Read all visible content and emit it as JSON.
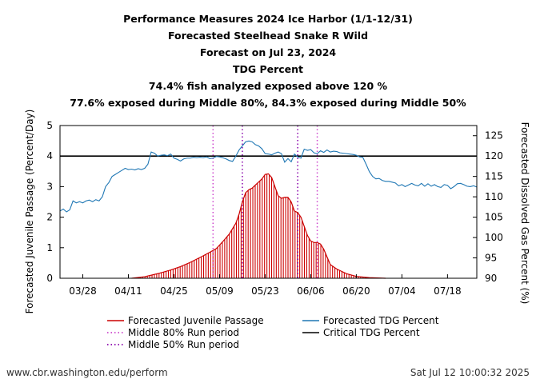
{
  "chart_data": {
    "type": "line",
    "title_lines": [
      "Performance Measures 2024 Ice Harbor (1/1-12/31)",
      "Forecasted Steelhead Snake R Wild",
      "Forecast on Jul 23, 2024",
      "TDG Percent",
      "74.4% fish analyzed exposed above 120 %",
      "77.6% exposed during Middle 80%, 84.3% exposed during Middle 50%"
    ],
    "ylabel_left": "Forecasted Juvenile Passage (Percent/Day)",
    "ylabel_right": "Forecasted Dissolved Gas Percent (%)",
    "x_range_days": [
      0,
      128
    ],
    "x_ticks": [
      {
        "label": "03/28",
        "day": 7
      },
      {
        "label": "04/11",
        "day": 21
      },
      {
        "label": "04/25",
        "day": 35
      },
      {
        "label": "05/09",
        "day": 49
      },
      {
        "label": "05/23",
        "day": 63
      },
      {
        "label": "06/06",
        "day": 77
      },
      {
        "label": "06/20",
        "day": 91
      },
      {
        "label": "07/04",
        "day": 105
      },
      {
        "label": "07/18",
        "day": 119
      }
    ],
    "ylim_left": [
      0,
      5
    ],
    "y_ticks_left": [
      "0",
      "1",
      "2",
      "3",
      "4",
      "5"
    ],
    "ylim_right": [
      90,
      127.5
    ],
    "y_ticks_right": [
      "90",
      "95",
      "100",
      "105",
      "110",
      "115",
      "120",
      "125"
    ],
    "critical_tdg_percent": 120,
    "middle80_days": [
      47,
      79
    ],
    "middle50_days": [
      56,
      73
    ],
    "passage_series": {
      "name": "Forecasted Juvenile Passage",
      "color": "#cc0000",
      "points": [
        [
          22,
          0
        ],
        [
          26,
          0.05
        ],
        [
          30,
          0.15
        ],
        [
          34,
          0.27
        ],
        [
          37,
          0.38
        ],
        [
          40,
          0.52
        ],
        [
          43,
          0.68
        ],
        [
          46,
          0.85
        ],
        [
          48,
          0.97
        ],
        [
          50,
          1.2
        ],
        [
          52,
          1.45
        ],
        [
          54,
          1.8
        ],
        [
          55,
          2.1
        ],
        [
          56,
          2.5
        ],
        [
          57,
          2.8
        ],
        [
          58,
          2.9
        ],
        [
          59,
          2.95
        ],
        [
          60,
          3.05
        ],
        [
          61,
          3.15
        ],
        [
          62,
          3.25
        ],
        [
          63,
          3.4
        ],
        [
          64,
          3.42
        ],
        [
          65,
          3.3
        ],
        [
          66,
          3.0
        ],
        [
          67,
          2.7
        ],
        [
          68,
          2.62
        ],
        [
          69,
          2.65
        ],
        [
          70,
          2.65
        ],
        [
          71,
          2.5
        ],
        [
          72,
          2.2
        ],
        [
          73,
          2.15
        ],
        [
          74,
          2.0
        ],
        [
          75,
          1.7
        ],
        [
          76,
          1.4
        ],
        [
          77,
          1.22
        ],
        [
          78,
          1.17
        ],
        [
          79,
          1.17
        ],
        [
          80,
          1.12
        ],
        [
          81,
          0.95
        ],
        [
          82,
          0.7
        ],
        [
          83,
          0.45
        ],
        [
          85,
          0.3
        ],
        [
          88,
          0.15
        ],
        [
          91,
          0.06
        ],
        [
          95,
          0.02
        ],
        [
          100,
          0
        ]
      ]
    },
    "tdg_series": {
      "name": "Forecasted TDG Percent",
      "color": "#1f77b4",
      "points": [
        [
          0,
          106.5
        ],
        [
          1,
          107
        ],
        [
          2,
          106.3
        ],
        [
          3,
          106.8
        ],
        [
          4,
          109
        ],
        [
          5,
          108.5
        ],
        [
          6,
          108.8
        ],
        [
          7,
          108.5
        ],
        [
          8,
          109
        ],
        [
          9,
          109.2
        ],
        [
          10,
          108.8
        ],
        [
          11,
          109.3
        ],
        [
          12,
          109
        ],
        [
          13,
          110
        ],
        [
          14,
          112.5
        ],
        [
          15,
          113.5
        ],
        [
          16,
          115
        ],
        [
          17,
          115.5
        ],
        [
          18,
          116
        ],
        [
          19,
          116.5
        ],
        [
          20,
          117
        ],
        [
          21,
          116.7
        ],
        [
          22,
          116.8
        ],
        [
          23,
          116.6
        ],
        [
          24,
          116.9
        ],
        [
          25,
          116.7
        ],
        [
          26,
          117
        ],
        [
          27,
          118
        ],
        [
          28,
          121
        ],
        [
          29,
          120.7
        ],
        [
          30,
          120
        ],
        [
          31,
          120.2
        ],
        [
          32,
          120.3
        ],
        [
          33,
          120.1
        ],
        [
          34,
          120.5
        ],
        [
          35,
          119.5
        ],
        [
          36,
          119.2
        ],
        [
          37,
          118.8
        ],
        [
          38,
          119.3
        ],
        [
          39,
          119.5
        ],
        [
          40,
          119.5
        ],
        [
          41,
          119.7
        ],
        [
          42,
          119.6
        ],
        [
          43,
          119.7
        ],
        [
          44,
          119.6
        ],
        [
          45,
          119.8
        ],
        [
          46,
          119.4
        ],
        [
          47,
          119.5
        ],
        [
          48,
          119.9
        ],
        [
          49,
          119.8
        ],
        [
          50,
          119.6
        ],
        [
          51,
          119.3
        ],
        [
          52,
          118.9
        ],
        [
          53,
          118.7
        ],
        [
          54,
          120
        ],
        [
          55,
          121.5
        ],
        [
          56,
          122.5
        ],
        [
          57,
          123.5
        ],
        [
          58,
          123.7
        ],
        [
          59,
          123.5
        ],
        [
          60,
          122.8
        ],
        [
          61,
          122.5
        ],
        [
          62,
          121.8
        ],
        [
          63,
          120.6
        ],
        [
          64,
          120.5
        ],
        [
          65,
          120.3
        ],
        [
          66,
          120.7
        ],
        [
          67,
          121
        ],
        [
          68,
          120.6
        ],
        [
          69,
          118.5
        ],
        [
          70,
          119.4
        ],
        [
          71,
          118.6
        ],
        [
          72,
          120.5
        ],
        [
          73,
          119.8
        ],
        [
          74,
          119.5
        ],
        [
          75,
          121.7
        ],
        [
          76,
          121.4
        ],
        [
          77,
          121.6
        ],
        [
          78,
          120.8
        ],
        [
          79,
          120.6
        ],
        [
          80,
          121.3
        ],
        [
          81,
          120.9
        ],
        [
          82,
          121.5
        ],
        [
          83,
          121
        ],
        [
          84,
          121.2
        ],
        [
          85,
          121.1
        ],
        [
          86,
          120.8
        ],
        [
          87,
          120.7
        ],
        [
          88,
          120.6
        ],
        [
          89,
          120.5
        ],
        [
          90,
          120.4
        ],
        [
          91,
          120.2
        ],
        [
          92,
          119.8
        ],
        [
          93,
          119.7
        ],
        [
          94,
          118
        ],
        [
          95,
          116.2
        ],
        [
          96,
          115
        ],
        [
          97,
          114.4
        ],
        [
          98,
          114.5
        ],
        [
          99,
          114
        ],
        [
          100,
          113.8
        ],
        [
          101,
          113.8
        ],
        [
          102,
          113.6
        ],
        [
          103,
          113.4
        ],
        [
          104,
          112.7
        ],
        [
          105,
          113
        ],
        [
          106,
          112.5
        ],
        [
          107,
          112.9
        ],
        [
          108,
          113.3
        ],
        [
          109,
          112.9
        ],
        [
          110,
          112.7
        ],
        [
          111,
          113.3
        ],
        [
          112,
          112.6
        ],
        [
          113,
          113.2
        ],
        [
          114,
          112.6
        ],
        [
          115,
          113
        ],
        [
          116,
          112.5
        ],
        [
          117,
          112.3
        ],
        [
          118,
          113
        ],
        [
          119,
          112.8
        ],
        [
          120,
          112
        ],
        [
          121,
          112.5
        ],
        [
          122,
          113.2
        ],
        [
          123,
          113.3
        ],
        [
          124,
          113
        ],
        [
          125,
          112.6
        ],
        [
          126,
          112.5
        ],
        [
          127,
          112.7
        ],
        [
          128,
          112.4
        ]
      ]
    },
    "legend": [
      {
        "key": "passage",
        "label": "Forecasted Juvenile Passage",
        "style": "solid",
        "color": "#cc0000"
      },
      {
        "key": "tdg",
        "label": "Forecasted TDG Percent",
        "style": "solid",
        "color": "#1f77b4"
      },
      {
        "key": "mid80",
        "label": "Middle 80% Run period",
        "style": "dotted",
        "color": "#cc44cc"
      },
      {
        "key": "critical",
        "label": "Critical TDG Percent",
        "style": "solid",
        "color": "#000000"
      },
      {
        "key": "mid50",
        "label": "Middle 50% Run period",
        "style": "dotted",
        "color": "#8800aa"
      }
    ]
  },
  "footer": {
    "left": "www.cbr.washington.edu/perform",
    "right": "Sat Jul 12 10:00:32 2025"
  }
}
